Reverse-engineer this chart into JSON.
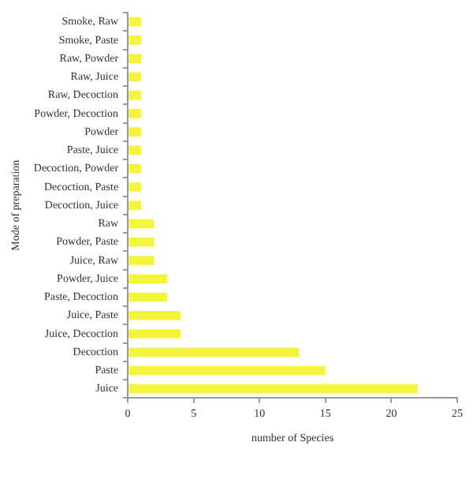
{
  "chart_data": {
    "type": "bar",
    "orientation": "horizontal",
    "xlabel": "number of Species",
    "ylabel": "Mode of preparation",
    "categories": [
      "Smoke, Raw",
      "Smoke, Paste",
      "Raw, Powder",
      "Raw, Juice",
      "Raw, Decoction",
      "Powder, Decoction",
      "Powder",
      "Paste, Juice",
      "Decoction, Powder",
      "Decoction, Paste",
      "Decoction, Juice",
      "Raw",
      "Powder, Paste",
      "Juice, Raw",
      "Powder, Juice",
      "Paste, Decoction",
      "Juice, Paste",
      "Juice, Decoction",
      "Decoction",
      "Paste",
      "Juice"
    ],
    "values": [
      1,
      1,
      1,
      1,
      1,
      1,
      1,
      1,
      1,
      1,
      1,
      2,
      2,
      2,
      3,
      3,
      4,
      4,
      13,
      15,
      22
    ],
    "color": "#f4f43c",
    "xlim": [
      0,
      25
    ],
    "xticks": [
      0,
      5,
      10,
      15,
      20,
      25
    ],
    "grid": false,
    "legend": false
  }
}
